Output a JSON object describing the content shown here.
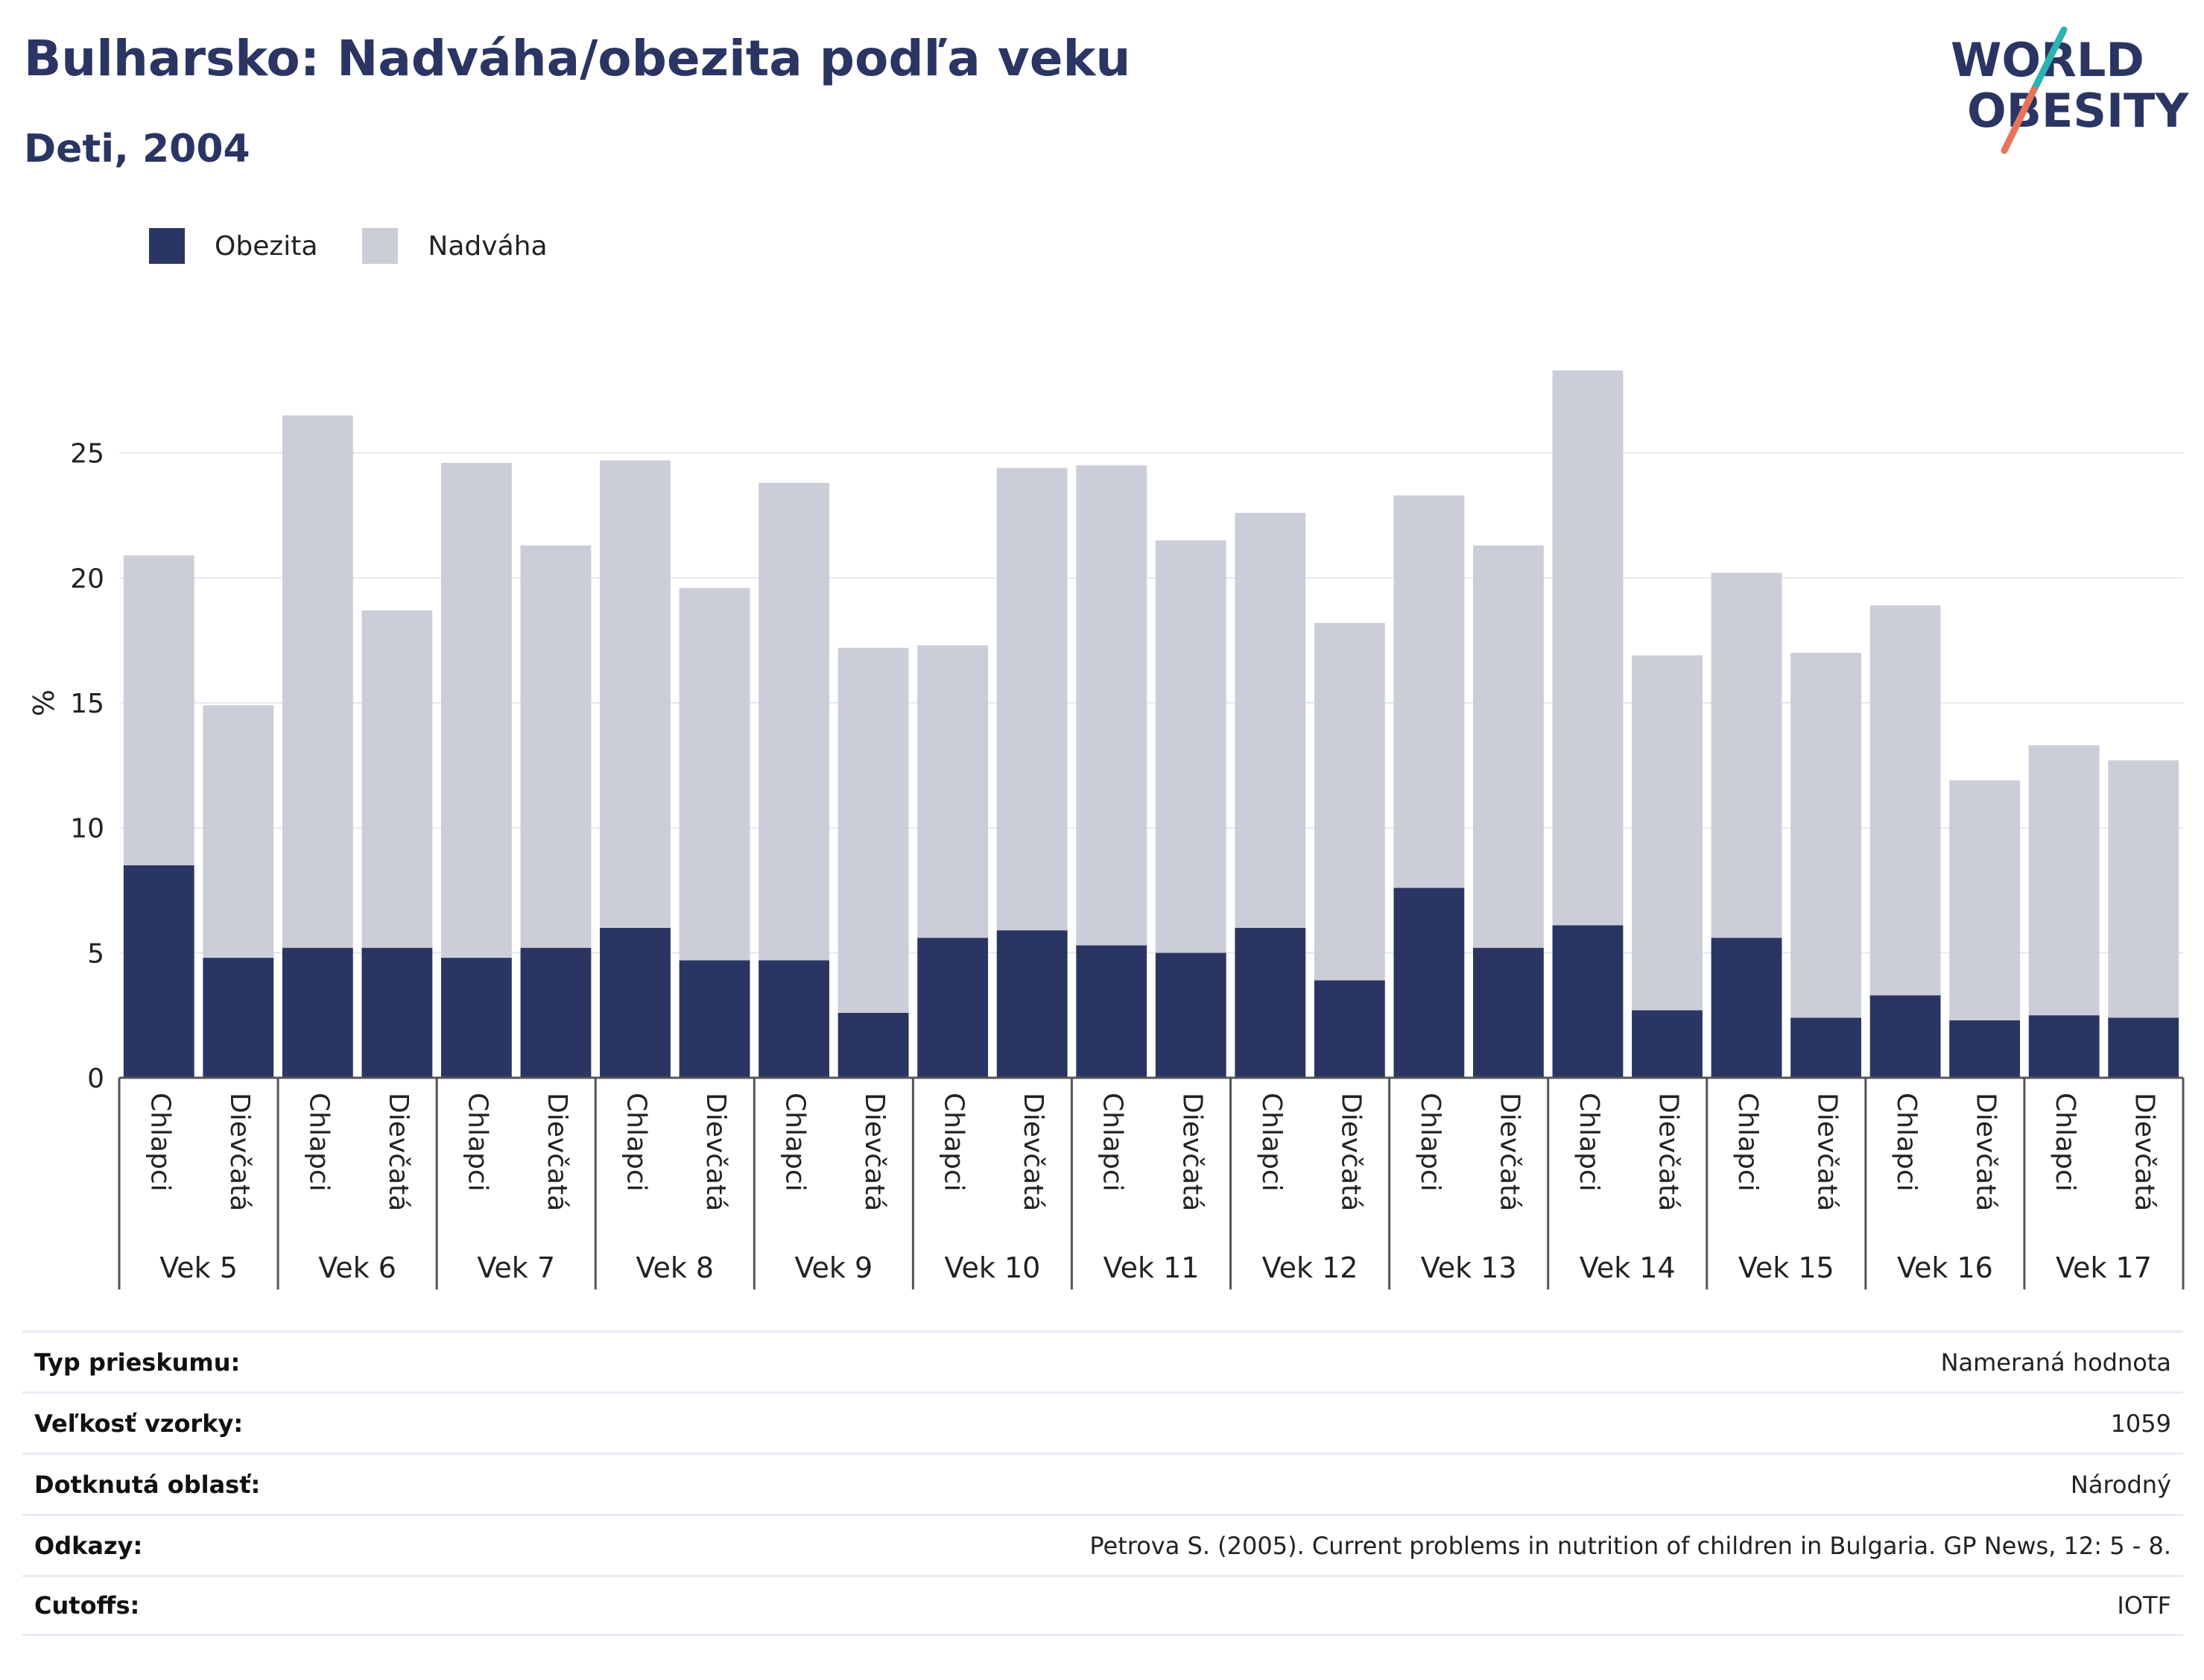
{
  "header": {
    "title": "Bulharsko: Nadváha/obezita podľa veku",
    "subtitle": "Deti, 2004"
  },
  "logo": {
    "line1": "WORLD",
    "line2": "OBESITY",
    "colors": {
      "text": "#2a3563",
      "slash_teal": "#2bb3b1",
      "slash_coral": "#e8735a"
    }
  },
  "legend": [
    {
      "label": "Obezita",
      "color": "#2a3563"
    },
    {
      "label": "Nadváha",
      "color": "#cbcdd8"
    }
  ],
  "chart_data": {
    "type": "bar",
    "stacked": true,
    "ylabel": "%",
    "ylim": [
      0,
      30
    ],
    "yticks": [
      0,
      5,
      10,
      15,
      20,
      25
    ],
    "grid": true,
    "legend_position": "top-left",
    "group_labels": [
      "Vek 5",
      "Vek 6",
      "Vek 7",
      "Vek 8",
      "Vek 9",
      "Vek 10",
      "Vek 11",
      "Vek 12",
      "Vek 13",
      "Vek 14",
      "Vek 15",
      "Vek 16",
      "Vek 17"
    ],
    "sub_labels": [
      "Chlapci",
      "Dievčatá"
    ],
    "series": [
      {
        "name": "Obezita",
        "color": "#2a3563",
        "values": [
          8.5,
          4.8,
          5.2,
          5.2,
          4.8,
          5.2,
          6.0,
          4.7,
          4.7,
          2.6,
          5.6,
          5.9,
          5.3,
          5.0,
          6.0,
          3.9,
          7.6,
          5.2,
          6.1,
          2.7,
          5.6,
          2.4,
          3.3,
          2.3,
          2.5,
          2.4
        ]
      },
      {
        "name": "Nadváha",
        "color": "#cbcdd8",
        "values": [
          12.4,
          10.1,
          21.3,
          13.5,
          19.8,
          16.1,
          18.7,
          14.9,
          19.1,
          14.6,
          11.7,
          18.5,
          19.2,
          16.5,
          16.6,
          14.3,
          15.7,
          16.1,
          22.2,
          14.2,
          14.6,
          14.6,
          15.6,
          9.6,
          10.8,
          10.3
        ]
      }
    ]
  },
  "info": [
    {
      "label": "Typ prieskumu:",
      "value": "Nameraná hodnota"
    },
    {
      "label": "Veľkosť vzorky:",
      "value": "1059"
    },
    {
      "label": "Dotknutá oblasť:",
      "value": "Národný"
    },
    {
      "label": "Odkazy:",
      "value": "Petrova S. (2005). Current problems in nutrition of children in Bulgaria. GP News, 12: 5 - 8."
    },
    {
      "label": "Cutoffs:",
      "value": "IOTF"
    }
  ]
}
